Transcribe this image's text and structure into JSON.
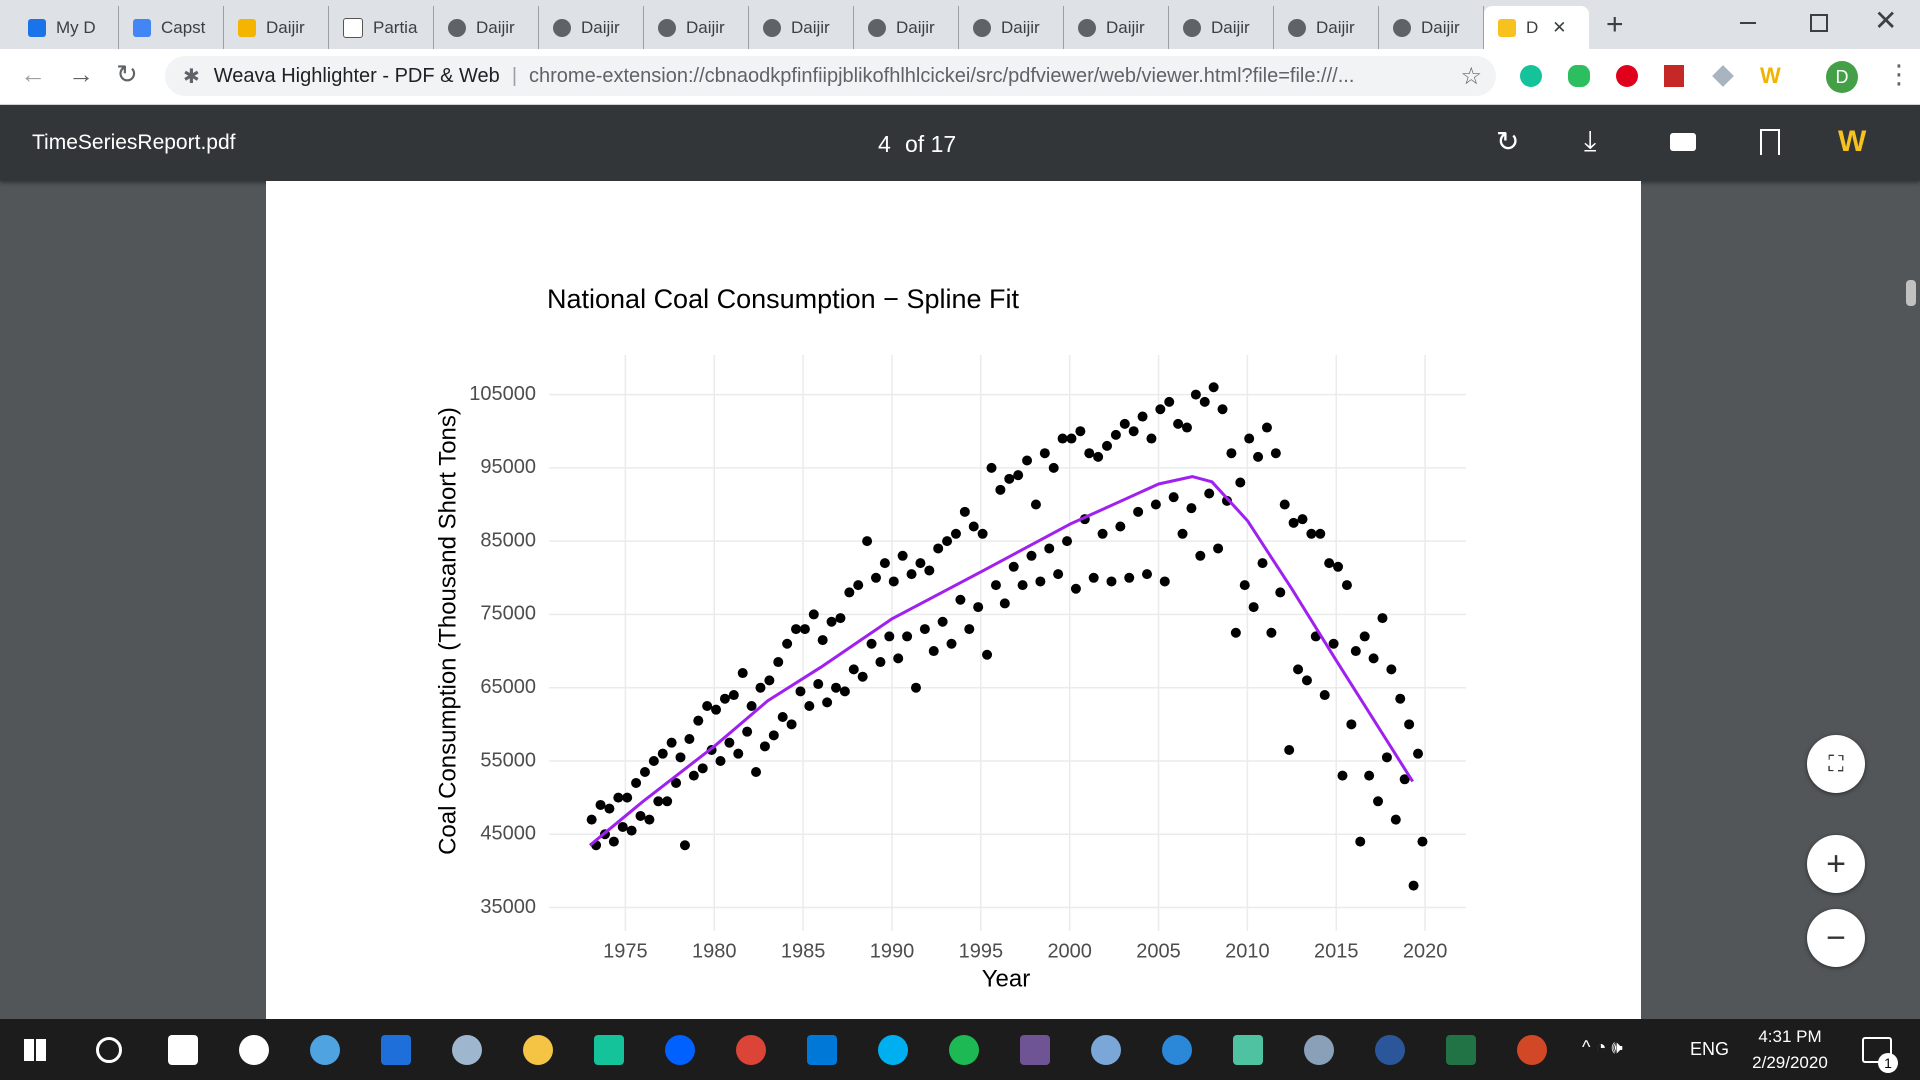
{
  "browser": {
    "tabs": [
      "My D",
      "Capst",
      "Daijir",
      "Partia",
      "Daijir",
      "Daijir",
      "Daijir",
      "Daijir",
      "Daijir",
      "Daijir",
      "Daijir",
      "Daijir",
      "Daijir",
      "Daijir",
      "D"
    ],
    "extension": "Weava Highlighter - PDF & Web",
    "url": "chrome-extension://cbnaodkpfinfiipjblikofhlhlcickei/src/pdfviewer/web/viewer.html?file=file:///...",
    "profile": "D"
  },
  "pdf_toolbar": {
    "filename": "TimeSeriesReport.pdf",
    "page": "4",
    "page_total": "of 17"
  },
  "chart_data": {
    "type": "scatter",
    "title": "National Coal Consumption − Spline Fit",
    "x_label": "Year",
    "y_label": "Coal Consumption  (Thousand Short Tons)",
    "xlim": [
      1970.7,
      2022.3
    ],
    "ylim": [
      31800,
      110400
    ],
    "xticks": [
      1975,
      1980,
      1985,
      1990,
      1995,
      2000,
      2005,
      2010,
      2015,
      2020
    ],
    "yticks": [
      35000,
      45000,
      55000,
      65000,
      75000,
      85000,
      95000,
      105000
    ],
    "grid": true,
    "series": [
      {
        "type": "scatter",
        "color": "#000000",
        "x": [
          1973.1,
          1973.35,
          1973.6,
          1973.85,
          1974.1,
          1974.35,
          1974.6,
          1974.85,
          1975.1,
          1975.35,
          1975.6,
          1975.85,
          1976.1,
          1976.35,
          1976.6,
          1976.85,
          1977.1,
          1977.35,
          1977.6,
          1977.85,
          1978.1,
          1978.35,
          1978.6,
          1978.85,
          1979.1,
          1979.35,
          1979.6,
          1979.85,
          1980.1,
          1980.35,
          1980.6,
          1980.85,
          1981.1,
          1981.35,
          1981.6,
          1981.85,
          1982.1,
          1982.35,
          1982.6,
          1982.85,
          1983.1,
          1983.35,
          1983.6,
          1983.85,
          1984.1,
          1984.35,
          1984.6,
          1984.85,
          1985.1,
          1985.35,
          1985.6,
          1985.85,
          1986.1,
          1986.35,
          1986.6,
          1986.85,
          1987.1,
          1987.35,
          1987.6,
          1987.85,
          1988.1,
          1988.35,
          1988.6,
          1988.85,
          1989.1,
          1989.35,
          1989.6,
          1989.85,
          1990.1,
          1990.35,
          1990.6,
          1990.85,
          1991.1,
          1991.35,
          1991.6,
          1991.85,
          1992.1,
          1992.35,
          1992.6,
          1992.85,
          1993.1,
          1993.35,
          1993.6,
          1993.85,
          1994.1,
          1994.35,
          1994.6,
          1994.85,
          1995.1,
          1995.35,
          1995.6,
          1995.85,
          1996.1,
          1996.35,
          1996.6,
          1996.85,
          1997.1,
          1997.35,
          1997.6,
          1997.85,
          1998.1,
          1998.35,
          1998.6,
          1998.85,
          1999.1,
          1999.35,
          1999.6,
          1999.85,
          2000.1,
          2000.35,
          2000.6,
          2000.85,
          2001.1,
          2001.35,
          2001.6,
          2001.85,
          2002.1,
          2002.35,
          2002.6,
          2002.85,
          2003.1,
          2003.35,
          2003.6,
          2003.85,
          2004.1,
          2004.35,
          2004.6,
          2004.85,
          2005.1,
          2005.35,
          2005.6,
          2005.85,
          2006.1,
          2006.35,
          2006.6,
          2006.85,
          2007.1,
          2007.35,
          2007.6,
          2007.85,
          2008.1,
          2008.35,
          2008.6,
          2008.85,
          2009.1,
          2009.35,
          2009.6,
          2009.85,
          2010.1,
          2010.35,
          2010.6,
          2010.85,
          2011.1,
          2011.35,
          2011.6,
          2011.85,
          2012.1,
          2012.35,
          2012.6,
          2012.85,
          2013.1,
          2013.35,
          2013.6,
          2013.85,
          2014.1,
          2014.35,
          2014.6,
          2014.85,
          2015.1,
          2015.35,
          2015.6,
          2015.85,
          2016.1,
          2016.35,
          2016.6,
          2016.85,
          2017.1,
          2017.35,
          2017.6,
          2017.85,
          2018.1,
          2018.35,
          2018.6,
          2018.85,
          2019.1,
          2019.35,
          2019.6,
          2019.85
        ],
        "values": [
          47000,
          43500,
          49000,
          45000,
          48500,
          44000,
          50000,
          46000,
          50000,
          45500,
          52000,
          47500,
          53500,
          47000,
          55000,
          49500,
          56000,
          49500,
          57500,
          52000,
          55500,
          43500,
          58000,
          53000,
          60500,
          54000,
          62500,
          56500,
          62000,
          55000,
          63500,
          57500,
          64000,
          56000,
          67000,
          59000,
          62500,
          53500,
          65000,
          57000,
          66000,
          58500,
          68500,
          61000,
          71000,
          60000,
          73000,
          64500,
          73000,
          62500,
          75000,
          65500,
          71500,
          63000,
          74000,
          65000,
          74500,
          64500,
          78000,
          67500,
          79000,
          66500,
          85000,
          71000,
          80000,
          68500,
          82000,
          72000,
          79500,
          69000,
          83000,
          72000,
          80500,
          65000,
          82000,
          73000,
          81000,
          70000,
          84000,
          74000,
          85000,
          71000,
          86000,
          77000,
          89000,
          73000,
          87000,
          76000,
          86000,
          69500,
          95000,
          79000,
          92000,
          76500,
          93500,
          81500,
          94000,
          79000,
          96000,
          83000,
          90000,
          79500,
          97000,
          84000,
          95000,
          80500,
          99000,
          85000,
          99000,
          78500,
          100000,
          88000,
          97000,
          80000,
          96500,
          86000,
          98000,
          79500,
          99500,
          87000,
          101000,
          80000,
          100000,
          89000,
          102000,
          80500,
          99000,
          90000,
          103000,
          79500,
          104000,
          91000,
          101000,
          86000,
          100500,
          89500,
          105000,
          83000,
          104000,
          91500,
          106000,
          84000,
          103000,
          90500,
          97000,
          72500,
          93000,
          79000,
          99000,
          76000,
          96500,
          82000,
          100500,
          72500,
          97000,
          78000,
          90000,
          56500,
          87500,
          67500,
          88000,
          66000,
          86000,
          72000,
          86000,
          64000,
          82000,
          71000,
          81500,
          53000,
          79000,
          60000,
          70000,
          44000,
          72000,
          53000,
          69000,
          49500,
          74500,
          55500,
          67500,
          47000,
          63500,
          52500,
          60000,
          38000,
          56000,
          44000
        ]
      },
      {
        "type": "line",
        "color": "#a020f0",
        "x": [
          1973,
          1976,
          1980,
          1983,
          1986,
          1990,
          1995,
          2000,
          2005,
          2006.9,
          2008,
          2010,
          2012.5,
          2015,
          2019.3
        ],
        "values": [
          43500,
          49500,
          57000,
          63200,
          67800,
          74400,
          80800,
          87300,
          92800,
          93800,
          93100,
          87800,
          78500,
          68700,
          52200
        ]
      }
    ]
  },
  "sidebar_buttons": {
    "zoom_in": "+",
    "zoom_out": "−"
  },
  "taskbar": {
    "language": "ENG",
    "time": "4:31 PM",
    "date": "2/29/2020",
    "notifications": "1"
  }
}
